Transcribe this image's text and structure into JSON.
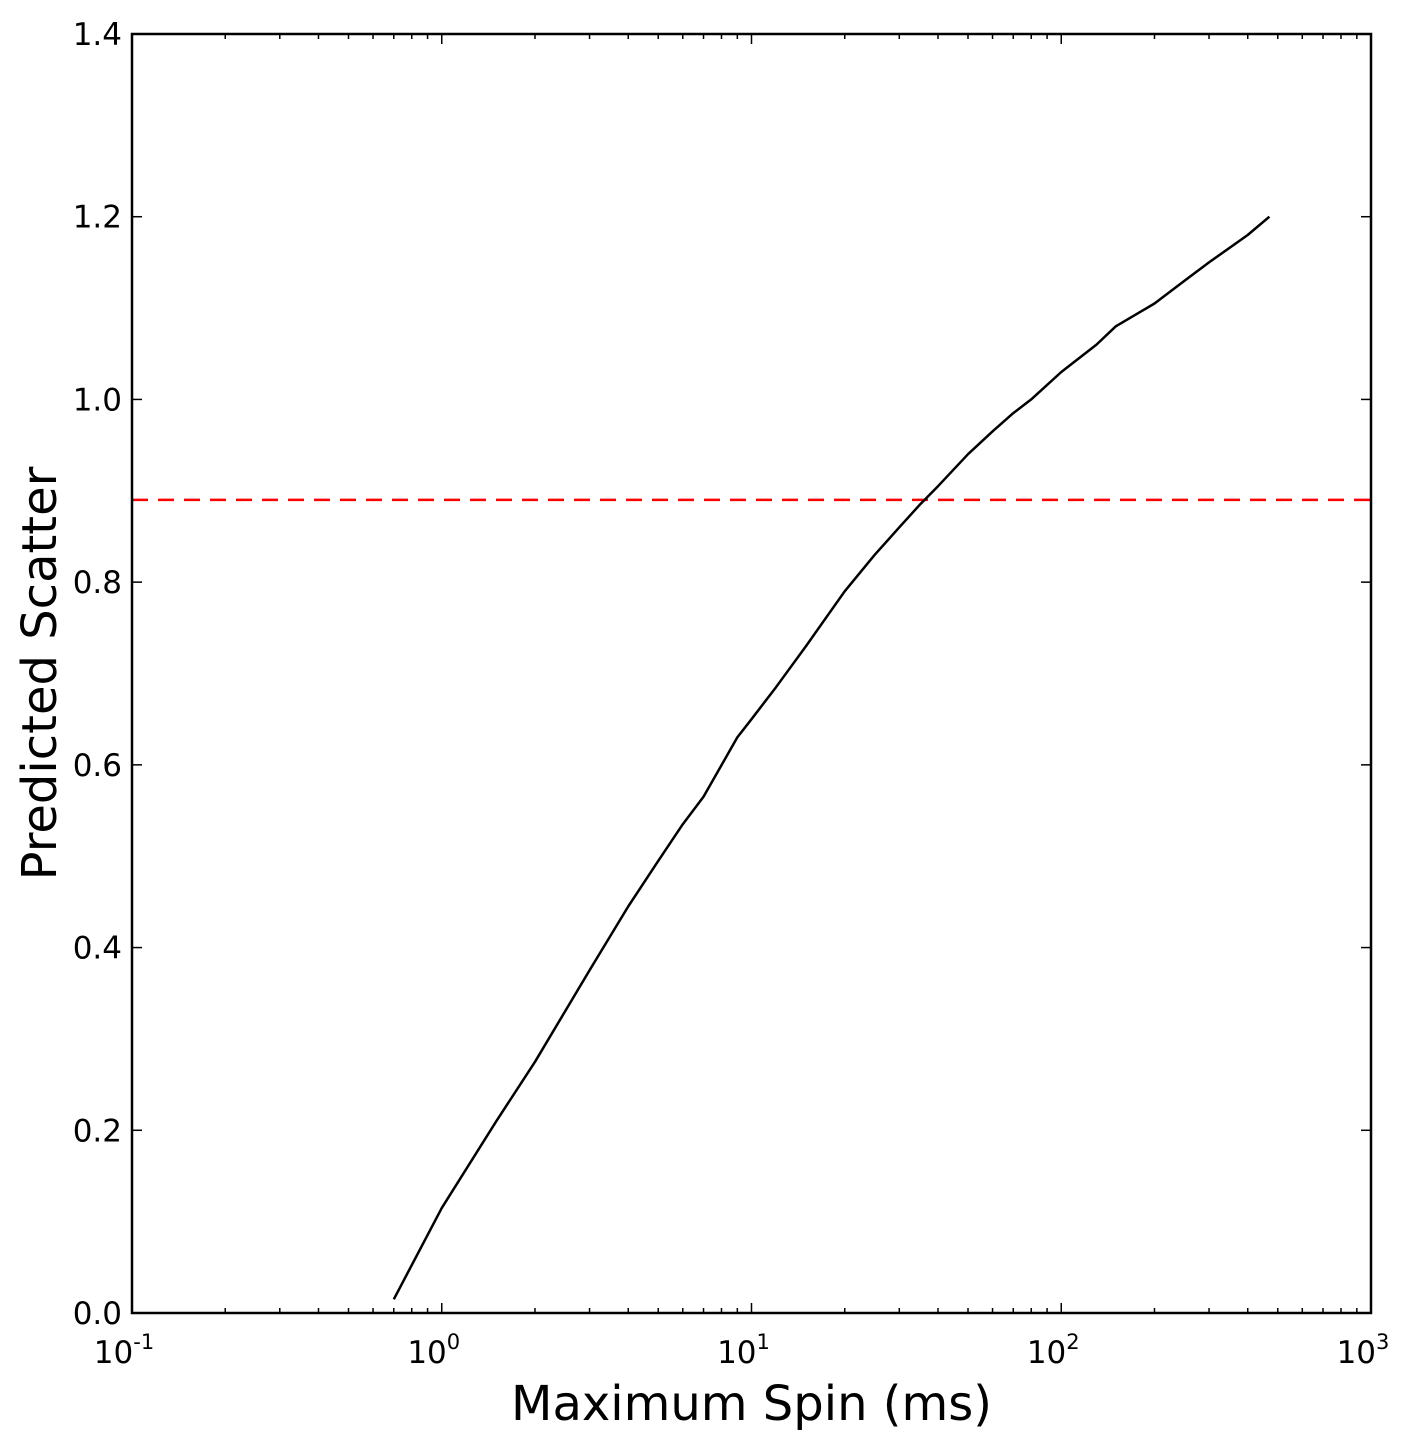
{
  "chart_data": {
    "type": "line",
    "title": "",
    "xlabel": "Maximum Spin (ms)",
    "ylabel": "Predicted Scatter",
    "xscale": "log",
    "xlim": [
      0.1,
      1000
    ],
    "ylim": [
      0.0,
      1.4
    ],
    "grid": false,
    "x_ticks": [
      {
        "base": "10",
        "exp": "-1",
        "value": 0.1
      },
      {
        "base": "10",
        "exp": "0",
        "value": 1
      },
      {
        "base": "10",
        "exp": "1",
        "value": 10
      },
      {
        "base": "10",
        "exp": "2",
        "value": 100
      },
      {
        "base": "10",
        "exp": "3",
        "value": 1000
      }
    ],
    "y_ticks": [
      "0.0",
      "0.2",
      "0.4",
      "0.6",
      "0.8",
      "1.0",
      "1.2",
      "1.4"
    ],
    "series": [
      {
        "color": "#000000",
        "style": "solid",
        "x": [
          0.7,
          1.0,
          1.5,
          2.0,
          3.0,
          4.0,
          5.0,
          6.0,
          7.0,
          9.0,
          10.0,
          12.0,
          15.0,
          20.0,
          25.0,
          30.0,
          35.0,
          40.0,
          50.0,
          60.0,
          70.0,
          80.0,
          100.0,
          130.0,
          150.0,
          200.0,
          250.0,
          300.0,
          400.0,
          470.0
        ],
        "y": [
          0.015,
          0.115,
          0.21,
          0.275,
          0.375,
          0.445,
          0.495,
          0.535,
          0.565,
          0.63,
          0.65,
          0.685,
          0.73,
          0.79,
          0.83,
          0.86,
          0.885,
          0.905,
          0.94,
          0.965,
          0.985,
          1.0,
          1.03,
          1.06,
          1.08,
          1.105,
          1.13,
          1.15,
          1.18,
          1.2
        ]
      }
    ],
    "reference_lines": [
      {
        "orientation": "horizontal",
        "y": 0.89,
        "color": "#ff0000",
        "style": "dashed"
      }
    ]
  }
}
